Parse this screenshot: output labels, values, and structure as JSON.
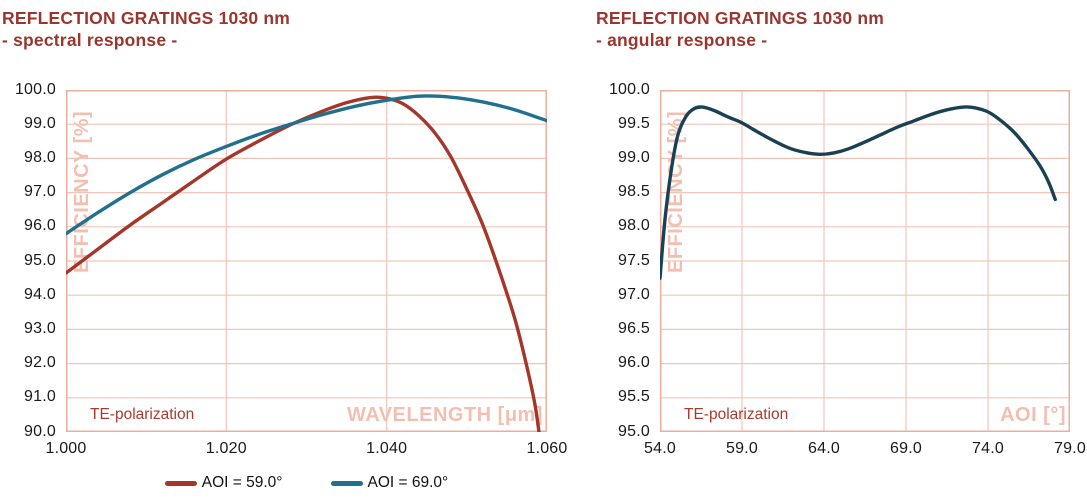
{
  "colors": {
    "title": "#9B362E",
    "grid": "#F3C5B9",
    "plot_border": "#ECAF9F",
    "watermark": "#F2BFB0",
    "annotation": "#AC3B2E",
    "tick_text": "#1A1A1A",
    "legend_text": "#111111"
  },
  "chart_data": [
    {
      "type": "line",
      "title": "REFLECTION GRATINGS 1030 nm",
      "subtitle": "- spectral response -",
      "ylabel": "EFFICIENCY [%]",
      "xlabel": "WAVELENGTH [μm]",
      "annotation": "TE-polarization",
      "grid": true,
      "legend_position": "bottom",
      "xlim": [
        1.0,
        1.06
      ],
      "ylim": [
        90.0,
        100.0
      ],
      "x_ticks": [
        1.0,
        1.02,
        1.04,
        1.06
      ],
      "x_tick_labels": [
        "1.000",
        "1.020",
        "1.040",
        "1.060"
      ],
      "y_ticks": [
        90,
        91,
        92,
        93,
        94,
        95,
        96,
        97,
        98,
        99,
        100
      ],
      "y_tick_labels": [
        "90.0",
        "91.0",
        "92.0",
        "93.0",
        "94.0",
        "95.0",
        "96.0",
        "97.0",
        "98.0",
        "99.0",
        "100.0"
      ],
      "series": [
        {
          "name": "AOI = 59.0°",
          "color": "#A4372A",
          "points": [
            [
              1.0,
              94.65
            ],
            [
              1.004,
              95.35
            ],
            [
              1.008,
              96.05
            ],
            [
              1.012,
              96.7
            ],
            [
              1.016,
              97.35
            ],
            [
              1.02,
              97.98
            ],
            [
              1.024,
              98.5
            ],
            [
              1.028,
              98.98
            ],
            [
              1.032,
              99.38
            ],
            [
              1.035,
              99.63
            ],
            [
              1.038,
              99.78
            ],
            [
              1.04,
              99.76
            ],
            [
              1.042,
              99.6
            ],
            [
              1.044,
              99.25
            ],
            [
              1.046,
              98.75
            ],
            [
              1.048,
              98.05
            ],
            [
              1.05,
              97.1
            ],
            [
              1.052,
              96.05
            ],
            [
              1.054,
              94.75
            ],
            [
              1.056,
              93.3
            ],
            [
              1.0575,
              91.9
            ],
            [
              1.0585,
              90.8
            ],
            [
              1.059,
              90.0
            ]
          ]
        },
        {
          "name": "AOI = 69.0°",
          "color": "#20708E",
          "points": [
            [
              1.0,
              95.8
            ],
            [
              1.004,
              96.42
            ],
            [
              1.008,
              97.0
            ],
            [
              1.012,
              97.52
            ],
            [
              1.016,
              97.97
            ],
            [
              1.02,
              98.35
            ],
            [
              1.024,
              98.7
            ],
            [
              1.028,
              99.0
            ],
            [
              1.032,
              99.28
            ],
            [
              1.036,
              99.52
            ],
            [
              1.04,
              99.7
            ],
            [
              1.044,
              99.82
            ],
            [
              1.048,
              99.79
            ],
            [
              1.052,
              99.65
            ],
            [
              1.056,
              99.42
            ],
            [
              1.06,
              99.1
            ]
          ]
        }
      ]
    },
    {
      "type": "line",
      "title": "REFLECTION GRATINGS 1030 nm",
      "subtitle": "- angular response -",
      "ylabel": "EFFICIENCY [%]",
      "xlabel": "AOI [°]",
      "annotation": "TE-polarization",
      "grid": true,
      "legend_position": "none",
      "xlim": [
        54.0,
        79.0
      ],
      "ylim": [
        95.0,
        100.0
      ],
      "x_ticks": [
        54,
        59,
        64,
        69,
        74,
        79
      ],
      "x_tick_labels": [
        "54.0",
        "59.0",
        "64.0",
        "69.0",
        "74.0",
        "79.0"
      ],
      "y_ticks": [
        95,
        95.5,
        96,
        96.5,
        97,
        97.5,
        98,
        98.5,
        99,
        99.5,
        100
      ],
      "y_tick_labels": [
        "95.0",
        "95.5",
        "96.0",
        "96.5",
        "97.0",
        "97.5",
        "98.0",
        "98.5",
        "99.0",
        "99.5",
        "100.0"
      ],
      "series": [
        {
          "name": "AOI sweep",
          "color": "#1A4153",
          "points": [
            [
              54.0,
              97.25
            ],
            [
              54.3,
              98.1
            ],
            [
              54.7,
              98.85
            ],
            [
              55.1,
              99.35
            ],
            [
              55.6,
              99.62
            ],
            [
              56.1,
              99.73
            ],
            [
              56.6,
              99.75
            ],
            [
              57.3,
              99.7
            ],
            [
              58.2,
              99.6
            ],
            [
              59.0,
              99.52
            ],
            [
              60.0,
              99.38
            ],
            [
              61.0,
              99.25
            ],
            [
              62.0,
              99.14
            ],
            [
              63.0,
              99.08
            ],
            [
              63.8,
              99.06
            ],
            [
              64.6,
              99.08
            ],
            [
              65.5,
              99.14
            ],
            [
              66.5,
              99.24
            ],
            [
              67.5,
              99.35
            ],
            [
              68.5,
              99.46
            ],
            [
              69.5,
              99.55
            ],
            [
              70.5,
              99.64
            ],
            [
              71.5,
              99.71
            ],
            [
              72.5,
              99.75
            ],
            [
              73.2,
              99.74
            ],
            [
              74.0,
              99.68
            ],
            [
              74.8,
              99.55
            ],
            [
              75.6,
              99.38
            ],
            [
              76.4,
              99.15
            ],
            [
              77.2,
              98.88
            ],
            [
              77.7,
              98.65
            ],
            [
              78.1,
              98.4
            ]
          ]
        }
      ]
    }
  ],
  "legend": {
    "items": [
      {
        "label": "AOI = 59.0°",
        "color": "#A4372A"
      },
      {
        "label": "AOI = 69.0°",
        "color": "#20708E"
      }
    ]
  }
}
